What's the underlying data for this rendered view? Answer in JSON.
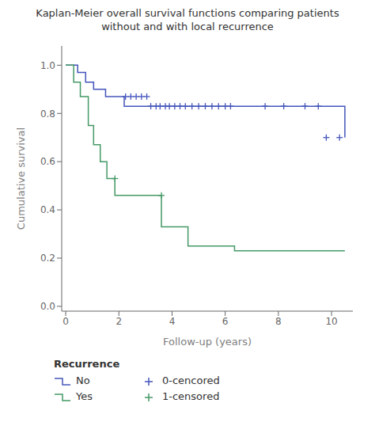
{
  "chart_data": {
    "type": "step",
    "title": "Kaplan-Meier overall survival functions comparing patients\nwithout and with local recurrence",
    "x_label": "Follow-up (years)",
    "y_label": "Cumulative survival",
    "xlim": [
      -0.15,
      10.8
    ],
    "ylim": [
      -0.02,
      1.08
    ],
    "xticks": [
      0,
      2,
      4,
      6,
      8,
      10
    ],
    "yticks": [
      {
        "value": 0,
        "label": "0.0"
      },
      0.2,
      0.4,
      0.6,
      0.8,
      {
        "value": 1,
        "label": "1.0"
      }
    ],
    "grid": false,
    "legend": "bottom",
    "legend_title": "Recurrence",
    "series": [
      {
        "name": "No",
        "type": "step",
        "line_style": "solid",
        "color": "#4455bb",
        "x": [
          0,
          0.45,
          0.75,
          1.05,
          1.5,
          2.2,
          3.0,
          9.5,
          10.5
        ],
        "values": [
          1.0,
          0.97,
          0.93,
          0.9,
          0.87,
          0.83,
          0.83,
          0.83,
          0.7
        ]
      },
      {
        "name": "Yes",
        "type": "step",
        "line_style": "solid",
        "color": "#449966",
        "x": [
          0,
          0.3,
          0.55,
          0.85,
          1.05,
          1.3,
          1.55,
          1.85,
          2.3,
          3.6,
          4.6,
          6.35,
          10.5
        ],
        "values": [
          1.0,
          0.93,
          0.87,
          0.75,
          0.67,
          0.6,
          0.53,
          0.46,
          0.46,
          0.33,
          0.25,
          0.23,
          0.23
        ]
      },
      {
        "name": "0-cencored",
        "type": "scatter",
        "marker": "plus",
        "color": "#4455bb",
        "x": [
          2.25,
          2.45,
          2.65,
          2.85,
          3.05,
          3.2,
          3.4,
          3.55,
          3.75,
          3.9,
          4.1,
          4.3,
          4.5,
          4.75,
          5.0,
          5.25,
          5.5,
          5.75,
          6.0,
          6.2,
          7.5,
          8.2,
          9.0,
          9.5,
          9.8,
          10.3
        ],
        "values": [
          0.87,
          0.87,
          0.87,
          0.87,
          0.87,
          0.83,
          0.83,
          0.83,
          0.83,
          0.83,
          0.83,
          0.83,
          0.83,
          0.83,
          0.83,
          0.83,
          0.83,
          0.83,
          0.83,
          0.83,
          0.83,
          0.83,
          0.83,
          0.83,
          0.7,
          0.7
        ]
      },
      {
        "name": "1-censored",
        "type": "scatter",
        "marker": "plus",
        "color": "#449966",
        "x": [
          1.85,
          3.6
        ],
        "values": [
          0.53,
          0.46
        ]
      }
    ]
  }
}
